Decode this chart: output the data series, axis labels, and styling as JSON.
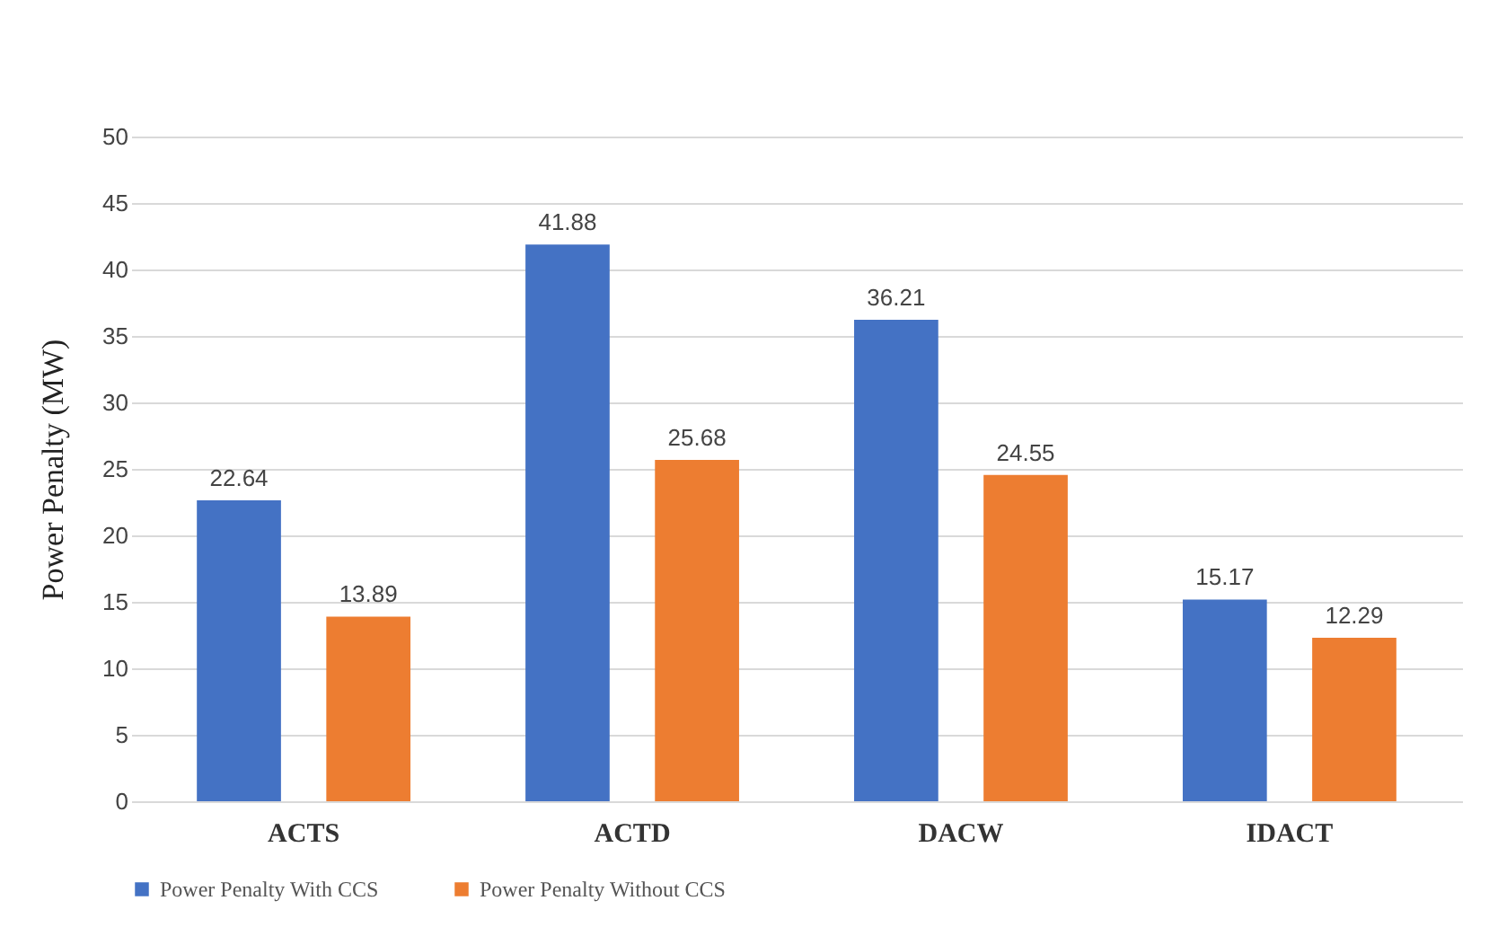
{
  "chart_data": {
    "type": "bar",
    "ylabel": "Power Penalty (MW)",
    "categories": [
      "ACTS",
      "ACTD",
      "DACW",
      "IDACT"
    ],
    "series": [
      {
        "name": "Power Penalty With CCS",
        "color": "#4472c4",
        "values": [
          22.64,
          41.88,
          36.21,
          15.17
        ]
      },
      {
        "name": "Power Penalty Without  CCS",
        "color": "#ed7d31",
        "values": [
          13.89,
          25.68,
          24.55,
          12.29
        ]
      }
    ],
    "ylim": [
      0,
      50
    ],
    "yticks": [
      0,
      5,
      10,
      15,
      20,
      25,
      30,
      35,
      40,
      45,
      50
    ],
    "grid": "y",
    "legend": "bottom",
    "data_labels": true
  }
}
